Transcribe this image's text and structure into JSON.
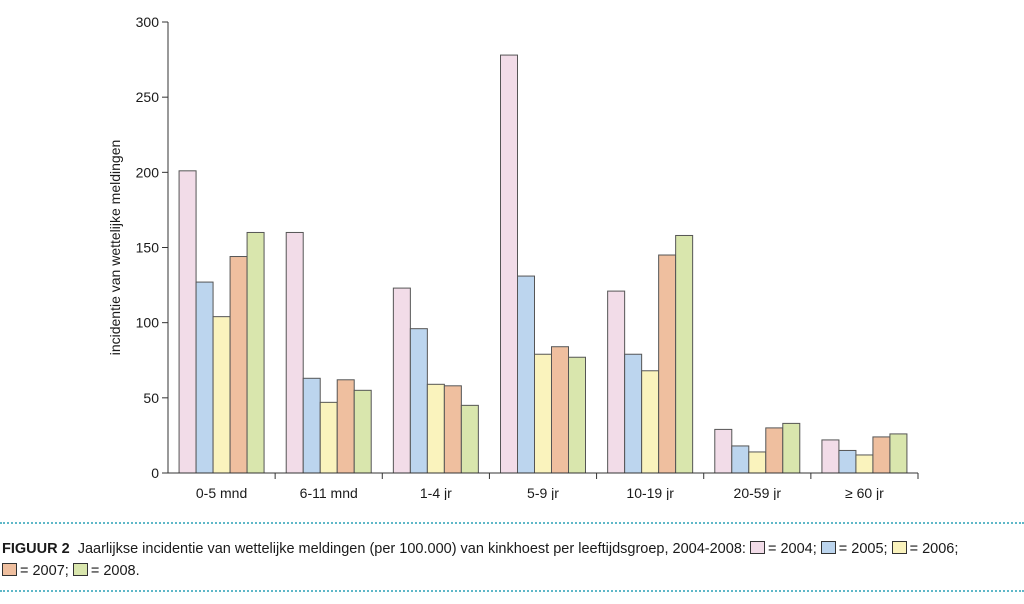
{
  "chart_data": {
    "type": "bar",
    "ylabel": "incidentie van wettelijke meldingen",
    "xlabel": "",
    "ylim": [
      0,
      300
    ],
    "yticks": [
      0,
      50,
      100,
      150,
      200,
      250,
      300
    ],
    "categories": [
      "0-5 mnd",
      "6-11 mnd",
      "1-4 jr",
      "5-9 jr",
      "10-19 jr",
      "20-59 jr",
      "≥ 60 jr"
    ],
    "series": [
      {
        "name": "2004",
        "color": "#f2dce8",
        "values": [
          201,
          160,
          123,
          278,
          121,
          29,
          22
        ]
      },
      {
        "name": "2005",
        "color": "#bcd5ee",
        "values": [
          127,
          63,
          96,
          131,
          79,
          18,
          15
        ]
      },
      {
        "name": "2006",
        "color": "#faf3bd",
        "values": [
          104,
          47,
          59,
          79,
          68,
          14,
          12
        ]
      },
      {
        "name": "2007",
        "color": "#efbf9f",
        "values": [
          144,
          62,
          58,
          84,
          145,
          30,
          24
        ]
      },
      {
        "name": "2008",
        "color": "#d9e6ad",
        "values": [
          160,
          55,
          45,
          77,
          158,
          33,
          26
        ]
      }
    ]
  },
  "caption": {
    "label": "FIGUUR 2",
    "text": "Jaarlijkse incidentie van wettelijke meldingen (per 100.000) van kinkhoest per leeftijdsgroep, 2004-2008:",
    "legend": [
      {
        "text": "= 2004;",
        "color": "#f2dce8"
      },
      {
        "text": "= 2005;",
        "color": "#bcd5ee"
      },
      {
        "text": "= 2006;",
        "color": "#faf3bd"
      },
      {
        "text": "= 2007;",
        "color": "#efbf9f"
      },
      {
        "text": "= 2008.",
        "color": "#d9e6ad"
      }
    ]
  }
}
